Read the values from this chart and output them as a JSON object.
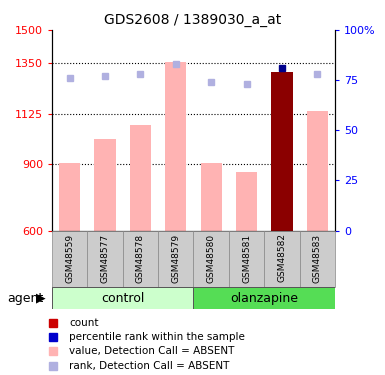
{
  "title": "GDS2608 / 1389030_a_at",
  "samples": [
    "GSM48559",
    "GSM48577",
    "GSM48578",
    "GSM48579",
    "GSM48580",
    "GSM48581",
    "GSM48582",
    "GSM48583"
  ],
  "bar_values": [
    905,
    1010,
    1075,
    1355,
    905,
    865,
    1310,
    1135
  ],
  "bar_colors": [
    "#ffb3b3",
    "#ffb3b3",
    "#ffb3b3",
    "#ffb3b3",
    "#ffb3b3",
    "#ffb3b3",
    "#8b0000",
    "#ffb3b3"
  ],
  "rank_values": [
    76,
    77,
    78,
    83,
    74,
    73,
    81,
    78
  ],
  "rank_colors": [
    "#b0b0e0",
    "#b0b0e0",
    "#b0b0e0",
    "#b0b0e0",
    "#b0b0e0",
    "#b0b0e0",
    "#00008b",
    "#b0b0e0"
  ],
  "ylim_left": [
    600,
    1500
  ],
  "ylim_right": [
    0,
    100
  ],
  "yticks_left": [
    600,
    900,
    1125,
    1350,
    1500
  ],
  "yticks_right": [
    0,
    25,
    50,
    75,
    100
  ],
  "ytick_right_labels": [
    "0",
    "25",
    "50",
    "75",
    "100%"
  ],
  "hgrid_vals": [
    900,
    1125,
    1350
  ],
  "control_label": "control",
  "olanzapine_label": "olanzapine",
  "agent_label": "agent",
  "legend_items": [
    {
      "label": "count",
      "color": "#cc0000"
    },
    {
      "label": "percentile rank within the sample",
      "color": "#0000cc"
    },
    {
      "label": "value, Detection Call = ABSENT",
      "color": "#ffb3b3"
    },
    {
      "label": "rank, Detection Call = ABSENT",
      "color": "#b0b0e0"
    }
  ],
  "group_bg_control": "#ccffcc",
  "group_bg_olanzapine": "#55dd55",
  "label_bg": "#cccccc",
  "n_control": 4,
  "n_olanzapine": 4
}
